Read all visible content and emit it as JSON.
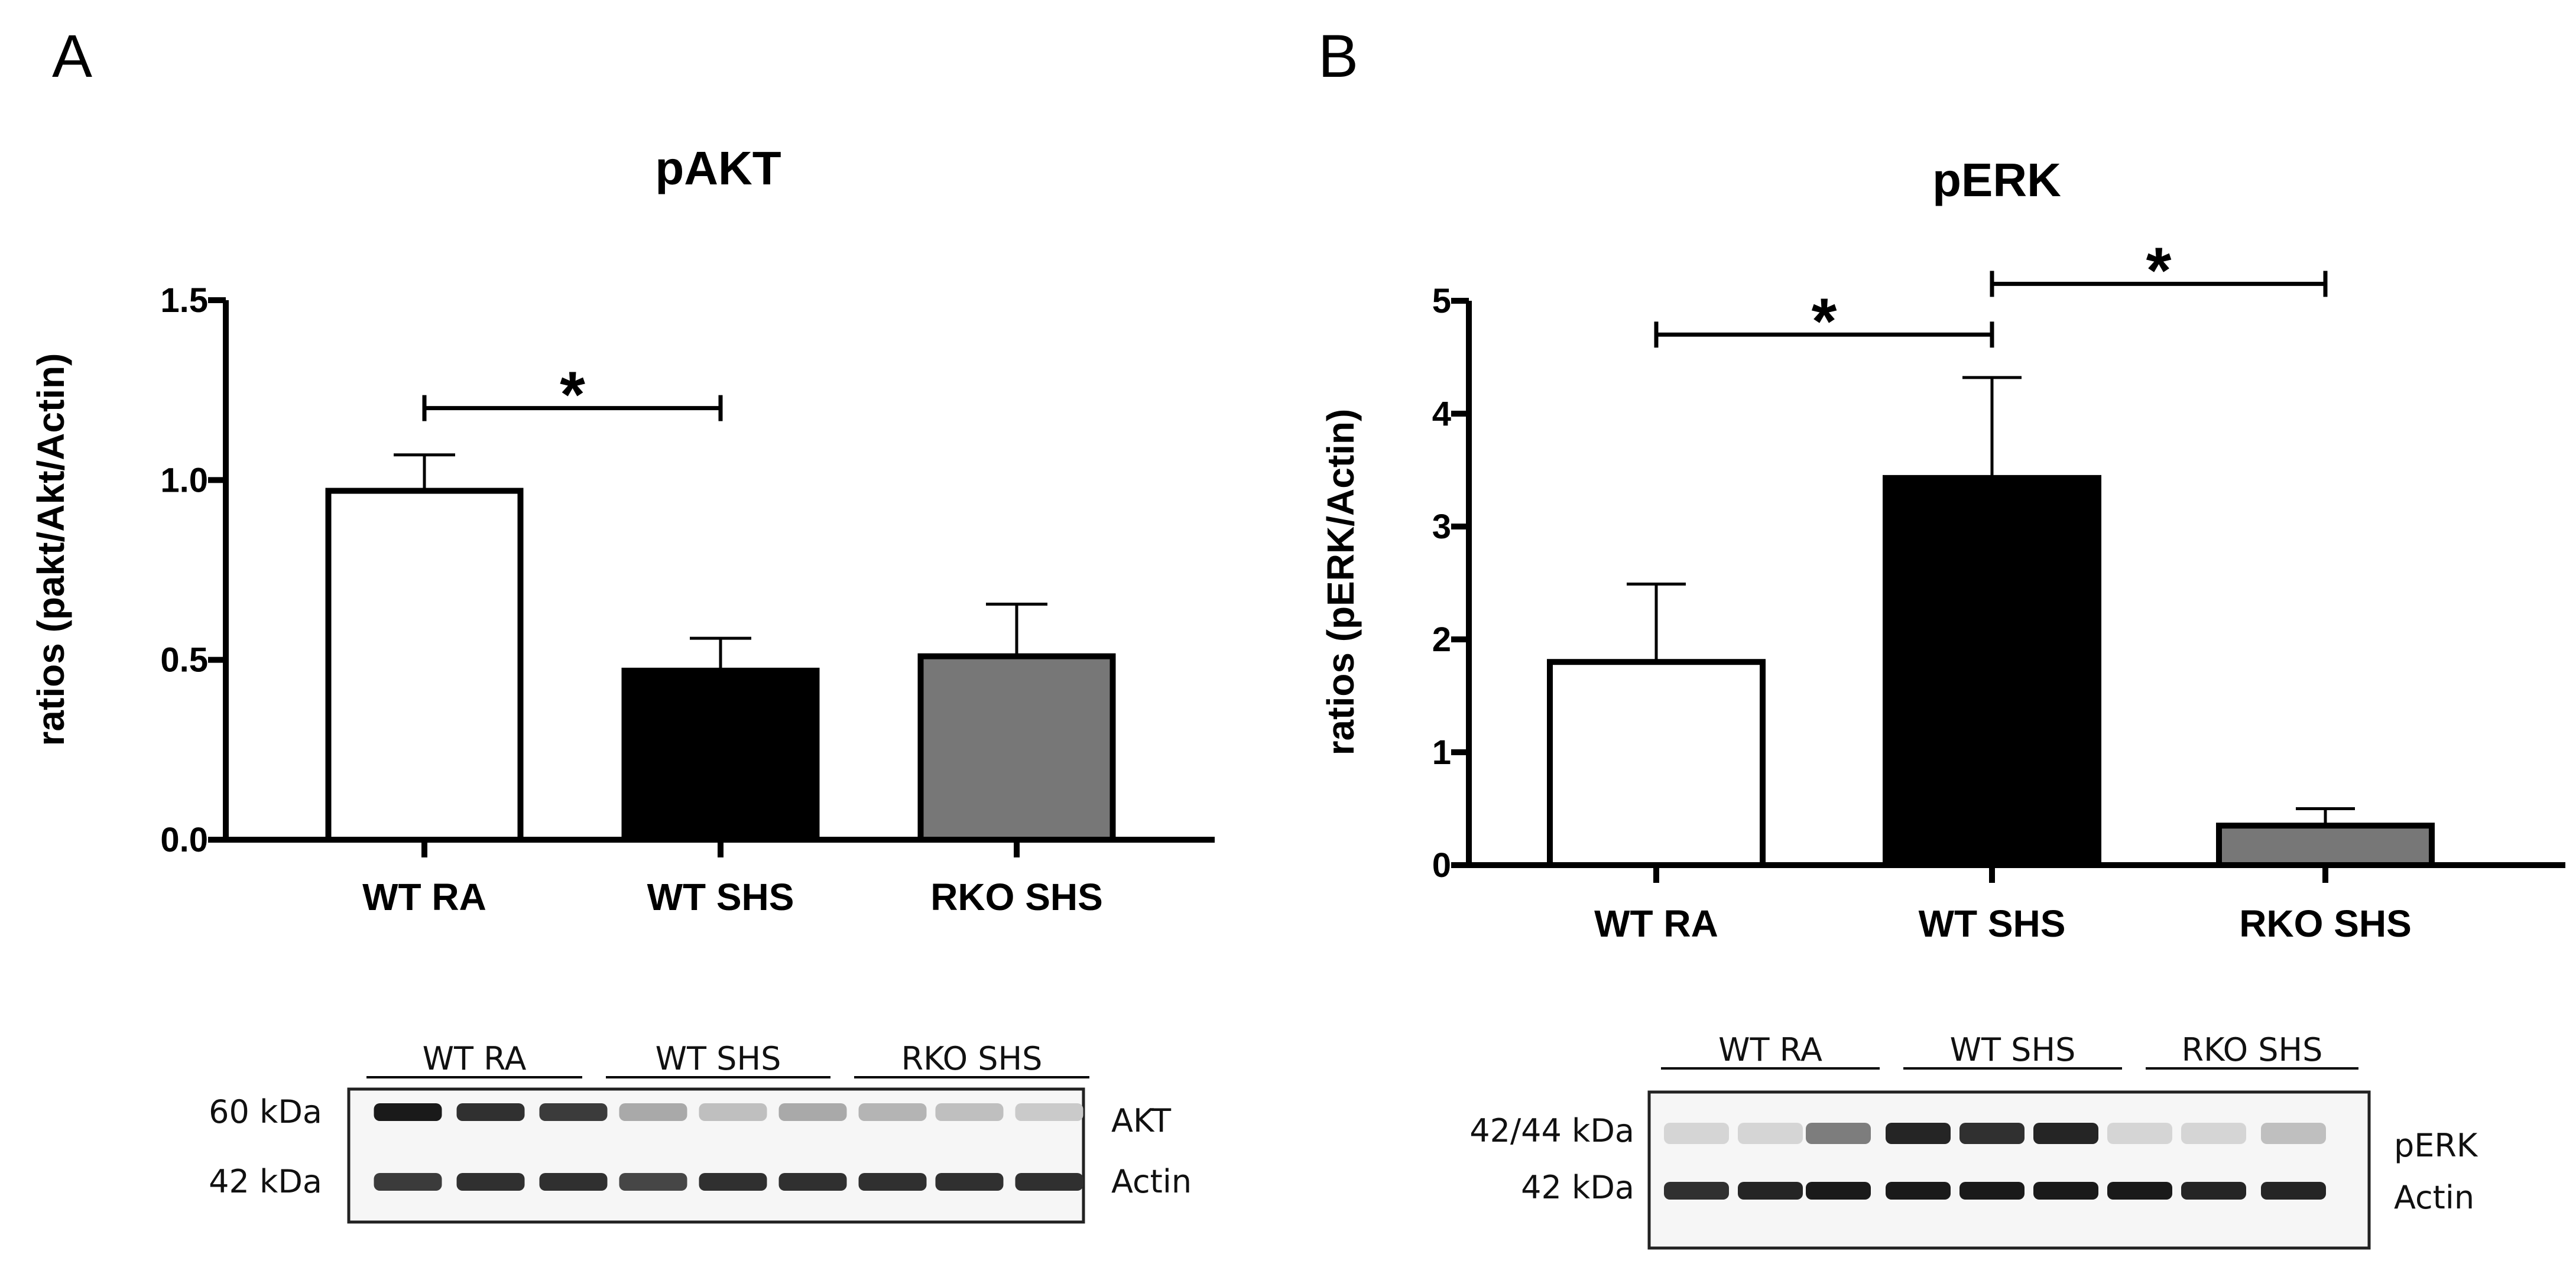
{
  "panels": {
    "a": {
      "letter": "A"
    },
    "b": {
      "letter": "B"
    }
  },
  "chart_data": [
    {
      "type": "bar",
      "title": "pAKT",
      "xlabel": "",
      "ylabel": "ratios (pakt/Akt/Actin)",
      "categories": [
        "WT RA",
        "WT SHS",
        "RKO SHS"
      ],
      "values": [
        0.97,
        0.47,
        0.51
      ],
      "errors": [
        0.1,
        0.09,
        0.145
      ],
      "colors": [
        "#ffffff",
        "#000000",
        "#777777"
      ],
      "ylim": [
        0,
        1.5
      ],
      "yticks": [
        0.0,
        0.5,
        1.0,
        1.5
      ],
      "ytick_labels": [
        "0.0",
        "0.5",
        "1.0",
        "1.5"
      ],
      "grid": false,
      "significance": [
        {
          "from": 0,
          "to": 1,
          "label": "*",
          "level": 1.2
        }
      ]
    },
    {
      "type": "bar",
      "title": "pERK",
      "xlabel": "",
      "ylabel": "ratios (pERK/Actin)",
      "categories": [
        "WT RA",
        "WT SHS",
        "RKO SHS"
      ],
      "values": [
        1.8,
        3.43,
        0.35
      ],
      "errors": [
        0.69,
        0.89,
        0.15
      ],
      "colors": [
        "#ffffff",
        "#000000",
        "#777777"
      ],
      "ylim": [
        0,
        5
      ],
      "yticks": [
        0,
        1,
        2,
        3,
        4,
        5
      ],
      "ytick_labels": [
        "0",
        "1",
        "2",
        "3",
        "4",
        "5"
      ],
      "grid": false,
      "significance": [
        {
          "from": 0,
          "to": 1,
          "label": "*",
          "level": 4.7
        },
        {
          "from": 1,
          "to": 2,
          "label": "*",
          "level": 5.15
        }
      ]
    }
  ],
  "blots": {
    "a": {
      "groups": [
        "WT RA",
        "WT SHS",
        "RKO SHS"
      ],
      "mw_labels": [
        "60 kDa",
        "42 kDa"
      ],
      "protein_labels": [
        "AKT",
        "Actin"
      ],
      "pakt_band_intensity": [
        0.95,
        0.85,
        0.8,
        0.3,
        0.2,
        0.3,
        0.25,
        0.2,
        0.15
      ],
      "actin_band_intensity": [
        0.8,
        0.85,
        0.85,
        0.75,
        0.85,
        0.85,
        0.85,
        0.85,
        0.85
      ]
    },
    "b": {
      "groups": [
        "WT RA",
        "WT SHS",
        "RKO SHS"
      ],
      "mw_labels": [
        "42/44 kDa",
        "42 kDa"
      ],
      "protein_labels": [
        "pERK",
        "Actin"
      ],
      "perk_band_intensity": [
        0.1,
        0.1,
        0.5,
        0.9,
        0.85,
        0.9,
        0.1,
        0.1,
        0.2
      ],
      "actin_band_intensity": [
        0.85,
        0.9,
        0.95,
        0.95,
        0.95,
        0.95,
        0.95,
        0.9,
        0.9
      ]
    }
  }
}
